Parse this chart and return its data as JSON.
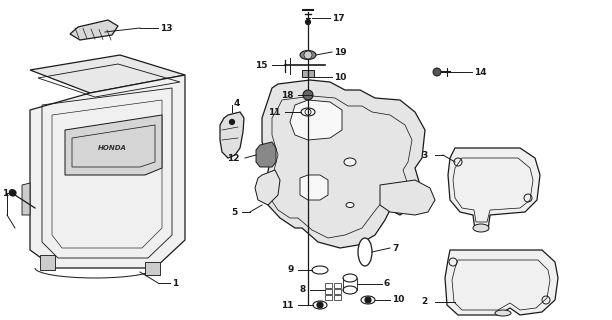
{
  "bg_color": "#ffffff",
  "line_color": "#1a1a1a",
  "fig_width": 6.12,
  "fig_height": 3.2,
  "dpi": 100,
  "label_fs": 6.5,
  "lw": 0.9
}
